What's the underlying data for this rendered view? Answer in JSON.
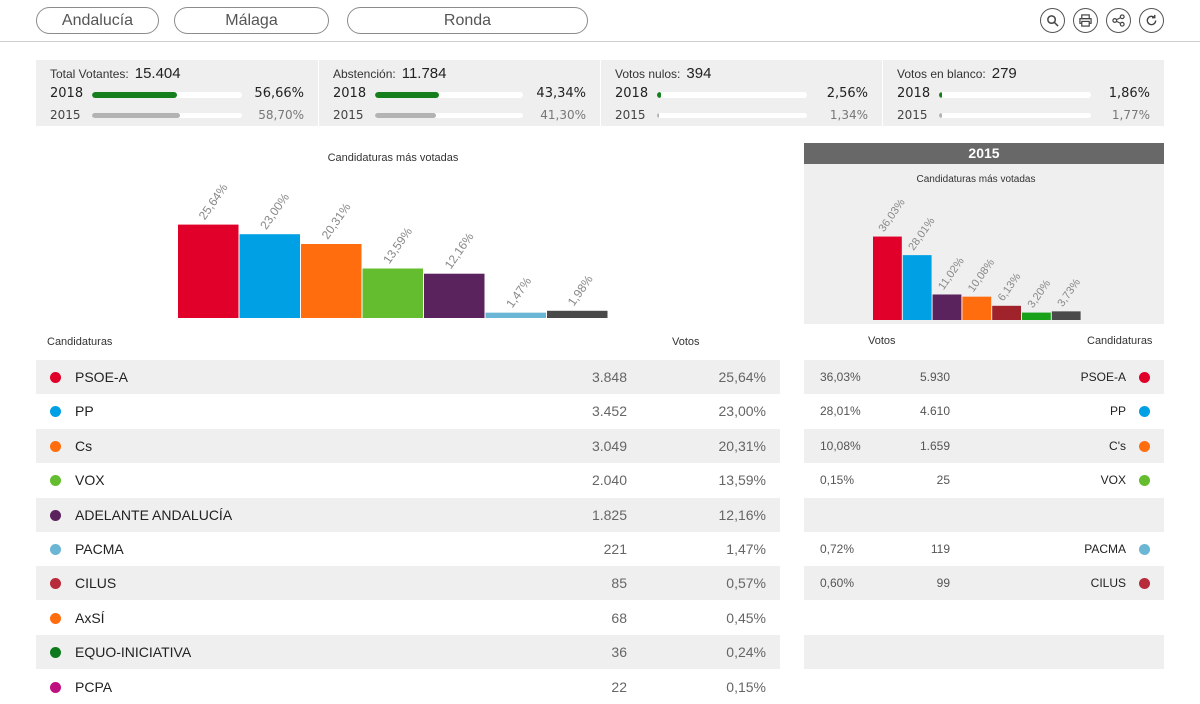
{
  "nav": {
    "region": "Andalucía",
    "province": "Málaga",
    "municipality": "Ronda",
    "icons": [
      "search-icon",
      "print-icon",
      "share-icon",
      "refresh-icon"
    ]
  },
  "stats": [
    {
      "label": "Total Votantes:",
      "value": "15.404",
      "y2018": "2018",
      "p2018": "56,66%",
      "f2018": 0.5666,
      "y2015": "2015",
      "p2015": "58,70%",
      "f2015": 0.587
    },
    {
      "label": "Abstención:",
      "value": "11.784",
      "y2018": "2018",
      "p2018": "43,34%",
      "f2018": 0.4334,
      "y2015": "2015",
      "p2015": "41,30%",
      "f2015": 0.413
    },
    {
      "label": "Votos nulos:",
      "value": "394",
      "y2018": "2018",
      "p2018": "2,56%",
      "f2018": 0.0256,
      "y2015": "2015",
      "p2015": "1,34%",
      "f2015": 0.0134
    },
    {
      "label": "Votos en blanco:",
      "value": "279",
      "y2018": "2018",
      "p2018": "1,86%",
      "f2018": 0.0186,
      "y2015": "2015",
      "p2015": "1,77%",
      "f2015": 0.0177
    }
  ],
  "chart_data": [
    {
      "type": "bar",
      "title": "Candidaturas más votadas",
      "categories": [
        "PSOE-A",
        "PP",
        "Cs",
        "VOX",
        "ADELANTE ANDALUCÍA",
        "PACMA",
        ""
      ],
      "values": [
        25.64,
        23.0,
        20.31,
        13.59,
        12.16,
        1.47,
        1.98
      ],
      "labels": [
        "25,64%",
        "23,00%",
        "20,31%",
        "13,59%",
        "12,16%",
        "1,47%",
        "1,98%"
      ],
      "colors": [
        "#e0002a",
        "#00a0e4",
        "#ff6d0f",
        "#63bd2e",
        "#5b235e",
        "#6bb6d4",
        "#4a4a4a"
      ],
      "ylim": [
        0,
        28
      ]
    },
    {
      "type": "bar",
      "title": "Candidaturas más votadas",
      "year": "2015",
      "categories": [
        "PSOE-A",
        "PP",
        "",
        "C's",
        "",
        "",
        ""
      ],
      "values": [
        36.03,
        28.01,
        11.02,
        10.08,
        6.13,
        3.2,
        3.73
      ],
      "labels": [
        "36,03%",
        "28,01%",
        "11,02%",
        "10,08%",
        "6,13%",
        "3,20%",
        "3,73%"
      ],
      "colors": [
        "#e0002a",
        "#00a0e4",
        "#5b235e",
        "#ff6d0f",
        "#a0232b",
        "#1aa11a",
        "#4a4a4a"
      ],
      "ylim": [
        0,
        38
      ]
    }
  ],
  "table": {
    "col_candidaturas": "Candidaturas",
    "col_votos": "Votos",
    "rows": [
      {
        "name": "PSOE-A",
        "votes": "3.848",
        "pct": "25,64%",
        "color": "#e0002a"
      },
      {
        "name": "PP",
        "votes": "3.452",
        "pct": "23,00%",
        "color": "#00a0e4"
      },
      {
        "name": "Cs",
        "votes": "3.049",
        "pct": "20,31%",
        "color": "#ff6d0f"
      },
      {
        "name": "VOX",
        "votes": "2.040",
        "pct": "13,59%",
        "color": "#63bd2e"
      },
      {
        "name": "ADELANTE ANDALUCÍA",
        "votes": "1.825",
        "pct": "12,16%",
        "color": "#5b235e"
      },
      {
        "name": "PACMA",
        "votes": "221",
        "pct": "1,47%",
        "color": "#6bb6d4"
      },
      {
        "name": "CILUS",
        "votes": "85",
        "pct": "0,57%",
        "color": "#b72b3b"
      },
      {
        "name": "AxSÍ",
        "votes": "68",
        "pct": "0,45%",
        "color": "#ff6d0f"
      },
      {
        "name": "EQUO-INICIATIVA",
        "votes": "36",
        "pct": "0,24%",
        "color": "#0f7a1d"
      },
      {
        "name": "PCPA",
        "votes": "22",
        "pct": "0,15%",
        "color": "#c0107f"
      }
    ]
  },
  "panel2015": {
    "header": "2015",
    "col_votos": "Votos",
    "col_candidaturas": "Candidaturas",
    "rows": [
      {
        "pct": "36,03%",
        "votes": "5.930",
        "name": "PSOE-A",
        "color": "#e0002a"
      },
      {
        "pct": "28,01%",
        "votes": "4.610",
        "name": "PP",
        "color": "#00a0e4"
      },
      {
        "pct": "10,08%",
        "votes": "1.659",
        "name": "C's",
        "color": "#ff6d0f"
      },
      {
        "pct": "0,15%",
        "votes": "25",
        "name": "VOX",
        "color": "#63bd2e"
      },
      {
        "pct": "",
        "votes": "",
        "name": "",
        "color": ""
      },
      {
        "pct": "0,72%",
        "votes": "119",
        "name": "PACMA",
        "color": "#6bb6d4"
      },
      {
        "pct": "0,60%",
        "votes": "99",
        "name": "CILUS",
        "color": "#b72b3b"
      },
      {
        "pct": "",
        "votes": "",
        "name": "",
        "color": ""
      },
      {
        "pct": "",
        "votes": "",
        "name": "",
        "color": ""
      },
      {
        "pct": "",
        "votes": "",
        "name": "",
        "color": ""
      }
    ]
  }
}
